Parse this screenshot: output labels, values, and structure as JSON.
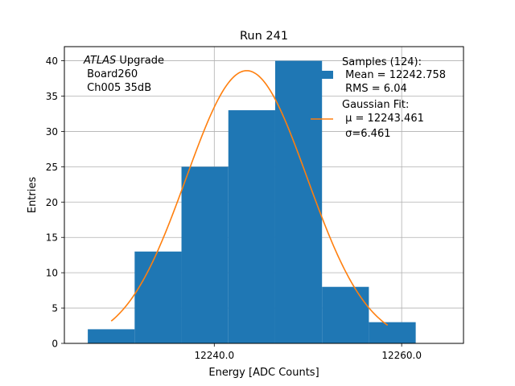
{
  "chart_data": {
    "type": "bar",
    "title": "Run 241",
    "xlabel": "Energy [ADC Counts]",
    "ylabel": "Entries",
    "xlim": [
      12224.0,
      12266.6
    ],
    "ylim": [
      0,
      42
    ],
    "xticks": [
      12240.0,
      12260.0
    ],
    "xtick_labels": [
      "12240.0",
      "12260.0"
    ],
    "yticks": [
      0,
      5,
      10,
      15,
      20,
      25,
      30,
      35,
      40
    ],
    "ytick_labels": [
      "0",
      "5",
      "10",
      "15",
      "20",
      "25",
      "30",
      "35",
      "40"
    ],
    "grid": true,
    "bar_color": "#1f77b4",
    "fit_color": "#ff7f0e",
    "bin_edges": [
      12226.5,
      12231.5,
      12236.5,
      12241.5,
      12246.5,
      12251.5,
      12256.5,
      12261.5
    ],
    "values": [
      2,
      13,
      25,
      33,
      40,
      8,
      3
    ],
    "fit": {
      "type": "gaussian",
      "mu": 12243.461,
      "sigma": 6.461,
      "amplitude": 38.6,
      "x_range": [
        12229.0,
        12258.5
      ]
    },
    "legend_placement": "top-right",
    "legend": {
      "samples_lines": [
        "Samples (124):",
        " Mean = 12242.758",
        " RMS = 6.04"
      ],
      "fit_lines": [
        "Gaussian Fit:",
        " μ = 12243.461",
        " σ=6.461"
      ]
    },
    "annotation": {
      "italic": "ATLAS",
      "rest": " Upgrade",
      "lines": [
        " Board260",
        " Ch005 35dB"
      ]
    }
  }
}
